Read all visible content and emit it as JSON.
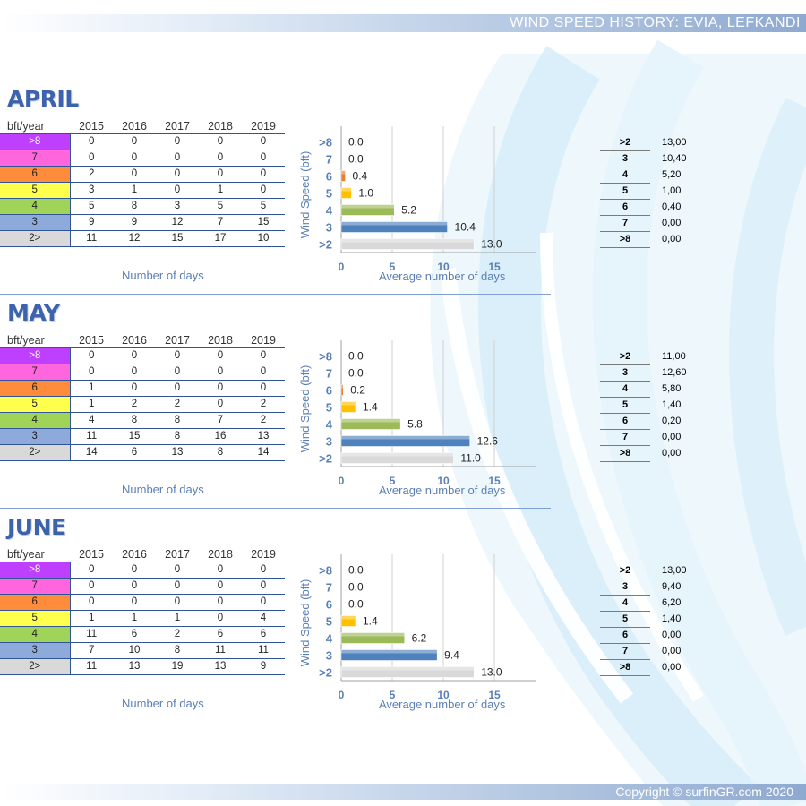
{
  "header": {
    "title": "WIND SPEED HISTORY: EVIA, LEFKANDI"
  },
  "footer": {
    "copyright": "Copyright © surfinGR.com 2020"
  },
  "table_corner": "bft/year",
  "years": [
    "2015",
    "2016",
    "2017",
    "2018",
    "2019"
  ],
  "levels": [
    ">8",
    "7",
    "6",
    "5",
    "4",
    "3",
    "2>"
  ],
  "level_colors": [
    "#bf3fff",
    "#ff66dd",
    "#ff8c3a",
    "#ffff4d",
    "#9fd458",
    "#8eaadb",
    "#d9d9d9"
  ],
  "days_label": "Number of days",
  "avg_label": "Average number of days",
  "right_keys": [
    ">2",
    "3",
    "4",
    "5",
    "6",
    "7",
    ">8"
  ],
  "months": [
    {
      "name": "APRIL",
      "counts": [
        [
          0,
          0,
          0,
          0,
          0
        ],
        [
          0,
          0,
          0,
          0,
          0
        ],
        [
          2,
          0,
          0,
          0,
          0
        ],
        [
          3,
          1,
          0,
          1,
          0
        ],
        [
          5,
          8,
          3,
          5,
          5
        ],
        [
          9,
          9,
          12,
          7,
          15
        ],
        [
          11,
          12,
          15,
          17,
          10
        ]
      ],
      "right_values": [
        "13,00",
        "10,40",
        "5,20",
        "1,00",
        "0,40",
        "0,00",
        "0,00"
      ]
    },
    {
      "name": "MAY",
      "counts": [
        [
          0,
          0,
          0,
          0,
          0
        ],
        [
          0,
          0,
          0,
          0,
          0
        ],
        [
          1,
          0,
          0,
          0,
          0
        ],
        [
          1,
          2,
          2,
          0,
          2
        ],
        [
          4,
          8,
          8,
          7,
          2
        ],
        [
          11,
          15,
          8,
          16,
          13
        ],
        [
          14,
          6,
          13,
          8,
          14
        ]
      ],
      "right_values": [
        "11,00",
        "12,60",
        "5,80",
        "1,40",
        "0,20",
        "0,00",
        "0,00"
      ]
    },
    {
      "name": "JUNE",
      "counts": [
        [
          0,
          0,
          0,
          0,
          0
        ],
        [
          0,
          0,
          0,
          0,
          0
        ],
        [
          0,
          0,
          0,
          0,
          0
        ],
        [
          1,
          1,
          1,
          0,
          4
        ],
        [
          11,
          6,
          2,
          6,
          6
        ],
        [
          7,
          10,
          8,
          11,
          11
        ],
        [
          11,
          13,
          19,
          13,
          9
        ]
      ],
      "right_values": [
        "13,00",
        "9,40",
        "6,20",
        "1,40",
        "0,00",
        "0,00",
        "0,00"
      ]
    }
  ],
  "chart_data": [
    {
      "type": "bar",
      "orientation": "horizontal",
      "categories": [
        ">8",
        "7",
        "6",
        "5",
        "4",
        "3",
        ">2"
      ],
      "values": [
        0.0,
        0.0,
        0.4,
        1.0,
        5.2,
        10.4,
        13.0
      ],
      "value_labels": [
        "0.0",
        "0.0",
        "0.4",
        "1.0",
        "5.2",
        "10.4",
        "13.0"
      ],
      "xlabel": "Average number of days",
      "ylabel": "Wind Speed (bft)",
      "xticks": [
        "0",
        "5",
        "10",
        "15"
      ],
      "xlim": [
        0,
        19
      ],
      "grid": true
    },
    {
      "type": "bar",
      "orientation": "horizontal",
      "categories": [
        ">8",
        "7",
        "6",
        "5",
        "4",
        "3",
        ">2"
      ],
      "values": [
        0.0,
        0.0,
        0.2,
        1.4,
        5.8,
        12.6,
        11.0
      ],
      "value_labels": [
        "0.0",
        "0.0",
        "0.2",
        "1.4",
        "5.8",
        "12.6",
        "11.0"
      ],
      "xlabel": "Average number of days",
      "ylabel": "Wind Speed (bft)",
      "xticks": [
        "0",
        "5",
        "10",
        "15"
      ],
      "xlim": [
        0,
        19
      ],
      "grid": true
    },
    {
      "type": "bar",
      "orientation": "horizontal",
      "categories": [
        ">8",
        "7",
        "6",
        "5",
        "4",
        "3",
        ">2"
      ],
      "values": [
        0.0,
        0.0,
        0.0,
        1.4,
        6.2,
        9.4,
        13.0
      ],
      "value_labels": [
        "0.0",
        "0.0",
        "0.0",
        "1.4",
        "6.2",
        "9.4",
        "13.0"
      ],
      "xlabel": "Average number of days",
      "ylabel": "Wind Speed (bft)",
      "xticks": [
        "0",
        "5",
        "10",
        "15"
      ],
      "xlim": [
        0,
        19
      ],
      "grid": true
    }
  ],
  "bar_colors": [
    "#7030a0",
    "#ff66cc",
    "#ed7d31",
    "#ffc000",
    "#9bbb59",
    "#4f81bd",
    "#d9d9d9"
  ]
}
